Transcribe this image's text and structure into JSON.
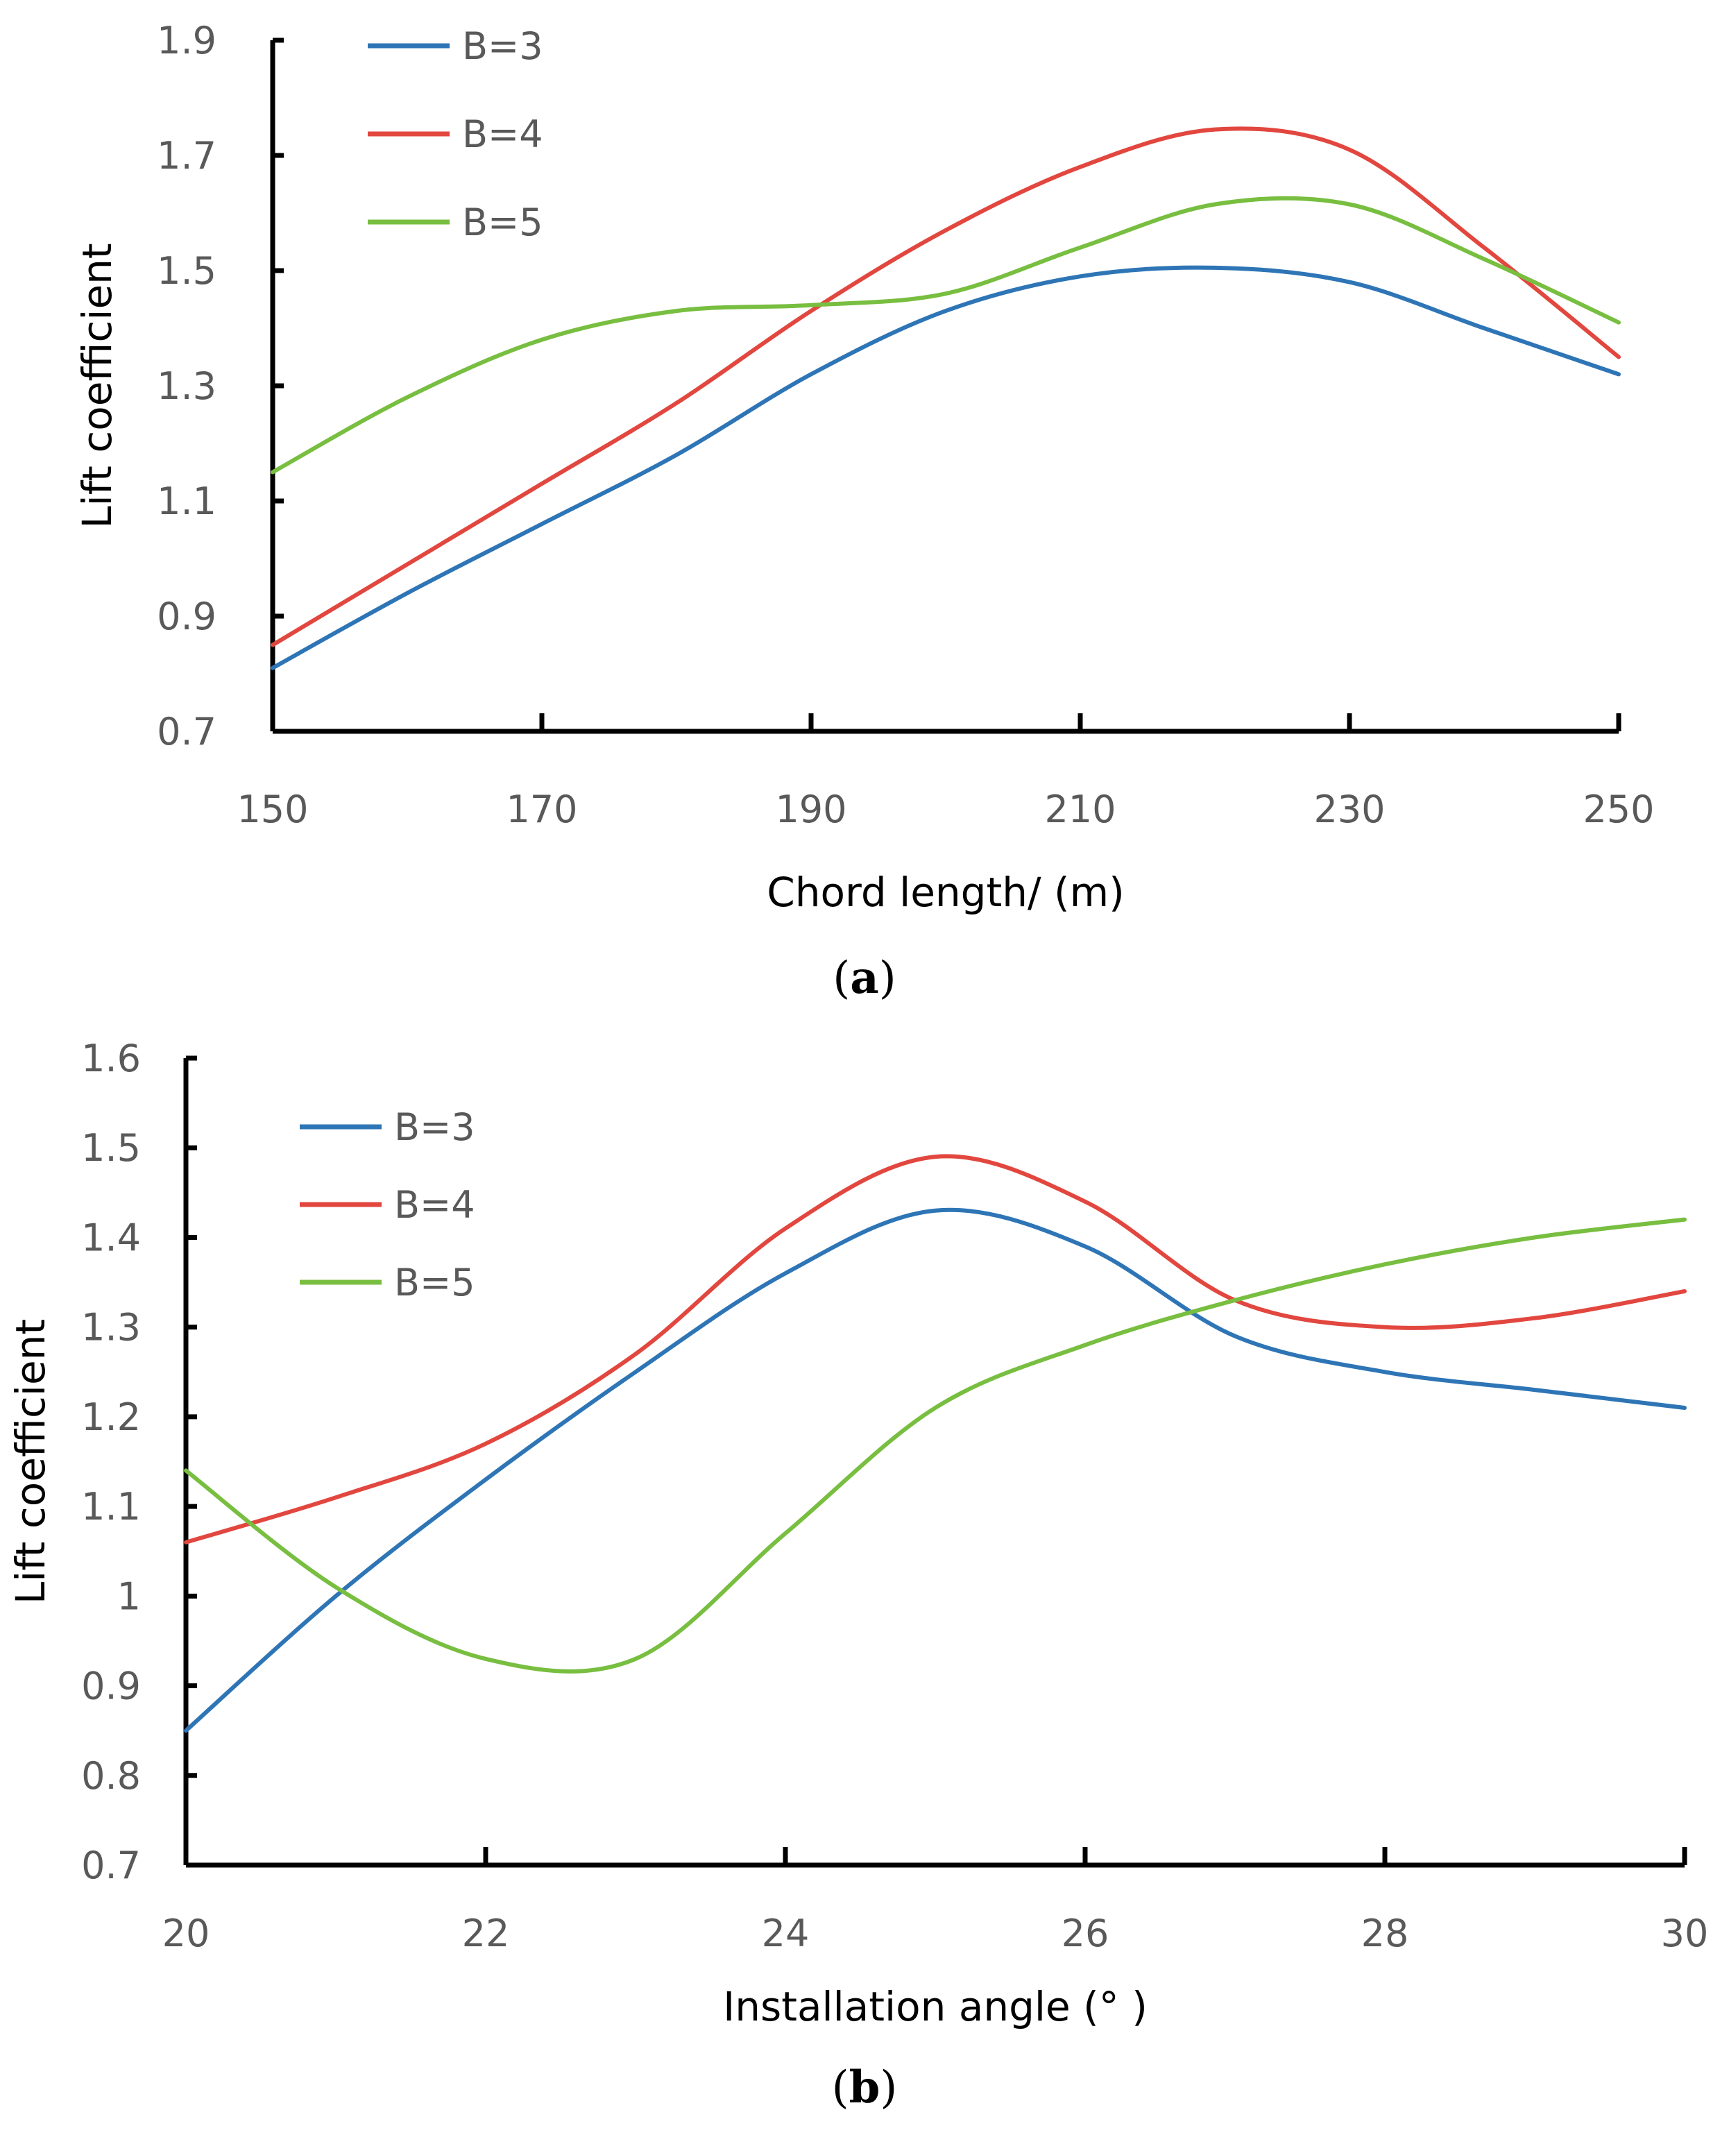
{
  "colors": {
    "B=3": "#2E75B6",
    "B=4": "#E2473F",
    "B=5": "#78BE40"
  },
  "chart_data": [
    {
      "type": "line",
      "panel": "(a)",
      "caption_letter": "a",
      "xlabel": "Chord length/ (m)",
      "ylabel": "Lift coefficient",
      "xlim": [
        150,
        250
      ],
      "ylim": [
        0.7,
        1.9
      ],
      "xticks": [
        150,
        170,
        190,
        210,
        230,
        250
      ],
      "yticks": [
        0.7,
        0.9,
        1.1,
        1.3,
        1.5,
        1.7,
        1.9
      ],
      "xtick_labels": [
        "150",
        "170",
        "190",
        "210",
        "230",
        "250"
      ],
      "ytick_labels": [
        "0.7",
        "0.9",
        "1.1",
        "1.3",
        "1.5",
        "1.7",
        "1.9"
      ],
      "legend_position": "top-left",
      "series": [
        {
          "name": "B=3",
          "x": [
            150,
            160,
            170,
            180,
            190,
            200,
            210,
            220,
            230,
            240,
            250
          ],
          "values": [
            0.81,
            0.94,
            1.06,
            1.18,
            1.32,
            1.43,
            1.49,
            1.505,
            1.48,
            1.4,
            1.32
          ]
        },
        {
          "name": "B=4",
          "x": [
            150,
            160,
            170,
            180,
            190,
            200,
            210,
            220,
            230,
            240,
            250
          ],
          "values": [
            0.85,
            0.99,
            1.13,
            1.27,
            1.43,
            1.57,
            1.68,
            1.745,
            1.71,
            1.54,
            1.35
          ]
        },
        {
          "name": "B=5",
          "x": [
            150,
            160,
            170,
            180,
            190,
            200,
            210,
            220,
            230,
            240,
            250
          ],
          "values": [
            1.15,
            1.28,
            1.38,
            1.43,
            1.44,
            1.46,
            1.54,
            1.615,
            1.615,
            1.52,
            1.41
          ]
        }
      ]
    },
    {
      "type": "line",
      "panel": "(b)",
      "caption_letter": "b",
      "xlabel": "Installation angle (°  )",
      "ylabel": "Lift coefficient",
      "xlim": [
        20,
        30
      ],
      "ylim": [
        0.7,
        1.6
      ],
      "xticks": [
        20,
        22,
        24,
        26,
        28,
        30
      ],
      "yticks": [
        0.7,
        0.8,
        0.9,
        1.0,
        1.1,
        1.2,
        1.3,
        1.4,
        1.5,
        1.6
      ],
      "xtick_labels": [
        "20",
        "22",
        "24",
        "26",
        "28",
        "30"
      ],
      "ytick_labels": [
        "0.7",
        "0.8",
        "0.9",
        "1",
        "1.1",
        "1.2",
        "1.3",
        "1.4",
        "1.5",
        "1.6"
      ],
      "legend_position": "top-left",
      "series": [
        {
          "name": "B=3",
          "x": [
            20,
            21,
            22,
            23,
            24,
            25,
            26,
            27,
            28,
            29,
            30
          ],
          "values": [
            0.85,
            1.0,
            1.13,
            1.25,
            1.36,
            1.43,
            1.39,
            1.29,
            1.25,
            1.23,
            1.21
          ]
        },
        {
          "name": "B=4",
          "x": [
            20,
            21,
            22,
            23,
            24,
            25,
            26,
            27,
            28,
            29,
            30
          ],
          "values": [
            1.06,
            1.11,
            1.17,
            1.27,
            1.41,
            1.49,
            1.44,
            1.33,
            1.3,
            1.31,
            1.34
          ]
        },
        {
          "name": "B=5",
          "x": [
            20,
            21,
            22,
            23,
            24,
            25,
            26,
            27,
            28,
            29,
            30
          ],
          "values": [
            1.14,
            1.01,
            0.93,
            0.93,
            1.07,
            1.21,
            1.28,
            1.33,
            1.37,
            1.4,
            1.42
          ]
        }
      ]
    }
  ]
}
